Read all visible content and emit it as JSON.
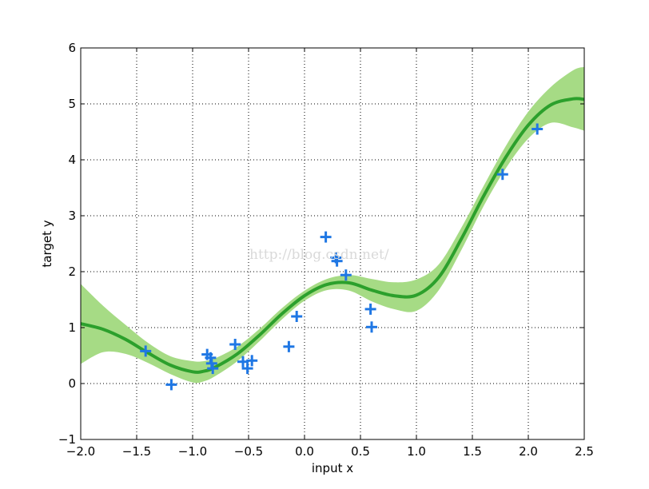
{
  "chart_data": {
    "type": "line",
    "xlabel": "input x",
    "ylabel": "target y",
    "xlim": [
      -2.0,
      2.5
    ],
    "ylim": [
      -1,
      6
    ],
    "xticks": [
      -2.0,
      -1.5,
      -1.0,
      -0.5,
      0.0,
      0.5,
      1.0,
      1.5,
      2.0,
      2.5
    ],
    "xtick_labels": [
      "−2.0",
      "−1.5",
      "−1.0",
      "−0.5",
      "0.0",
      "0.5",
      "1.0",
      "1.5",
      "2.0",
      "2.5"
    ],
    "yticks": [
      -1,
      0,
      1,
      2,
      3,
      4,
      5,
      6
    ],
    "ytick_labels": [
      "−1",
      "0",
      "1",
      "2",
      "3",
      "4",
      "5",
      "6"
    ],
    "grid": true,
    "watermark": "http://blog.csdn.net/",
    "colors": {
      "mean": "#2ca02c",
      "band": "#a6db85",
      "points": "#1f77e4"
    },
    "series": [
      {
        "type": "line",
        "x": [
          -2.0,
          -1.8,
          -1.6,
          -1.4,
          -1.2,
          -1.0,
          -0.9,
          -0.8,
          -0.6,
          -0.4,
          -0.2,
          0.0,
          0.2,
          0.4,
          0.6,
          0.8,
          1.0,
          1.2,
          1.4,
          1.6,
          1.8,
          2.0,
          2.2,
          2.4,
          2.5
        ],
        "y": [
          1.07,
          0.97,
          0.79,
          0.55,
          0.33,
          0.21,
          0.22,
          0.29,
          0.53,
          0.87,
          1.25,
          1.57,
          1.77,
          1.8,
          1.67,
          1.57,
          1.58,
          1.9,
          2.58,
          3.35,
          4.05,
          4.62,
          4.98,
          5.09,
          5.08
        ]
      },
      {
        "type": "band",
        "x": [
          -2.0,
          -1.8,
          -1.6,
          -1.4,
          -1.2,
          -1.0,
          -0.9,
          -0.8,
          -0.6,
          -0.4,
          -0.2,
          0.0,
          0.2,
          0.4,
          0.6,
          0.8,
          1.0,
          1.2,
          1.4,
          1.6,
          1.8,
          2.0,
          2.2,
          2.4,
          2.5
        ],
        "lower": [
          0.35,
          0.56,
          0.53,
          0.37,
          0.17,
          0.02,
          0.04,
          0.13,
          0.4,
          0.76,
          1.15,
          1.48,
          1.67,
          1.66,
          1.47,
          1.33,
          1.3,
          1.67,
          2.38,
          3.17,
          3.85,
          4.38,
          4.66,
          4.58,
          4.52
        ],
        "upper": [
          1.78,
          1.39,
          1.05,
          0.73,
          0.49,
          0.4,
          0.4,
          0.45,
          0.66,
          0.98,
          1.35,
          1.66,
          1.87,
          1.94,
          1.87,
          1.81,
          1.86,
          2.13,
          2.78,
          3.53,
          4.25,
          4.86,
          5.3,
          5.6,
          5.66
        ]
      },
      {
        "type": "scatter",
        "x": [
          -1.42,
          -1.19,
          -0.87,
          -0.84,
          -0.83,
          -0.82,
          -0.62,
          -0.55,
          -0.51,
          -0.47,
          -0.14,
          -0.07,
          0.19,
          0.28,
          0.29,
          0.37,
          0.59,
          0.6,
          1.77,
          2.08
        ],
        "y": [
          0.58,
          -0.02,
          0.52,
          0.46,
          0.36,
          0.27,
          0.7,
          0.39,
          0.27,
          0.41,
          0.66,
          1.2,
          2.62,
          2.25,
          2.19,
          1.94,
          1.33,
          1.01,
          3.74,
          4.55
        ]
      }
    ]
  }
}
